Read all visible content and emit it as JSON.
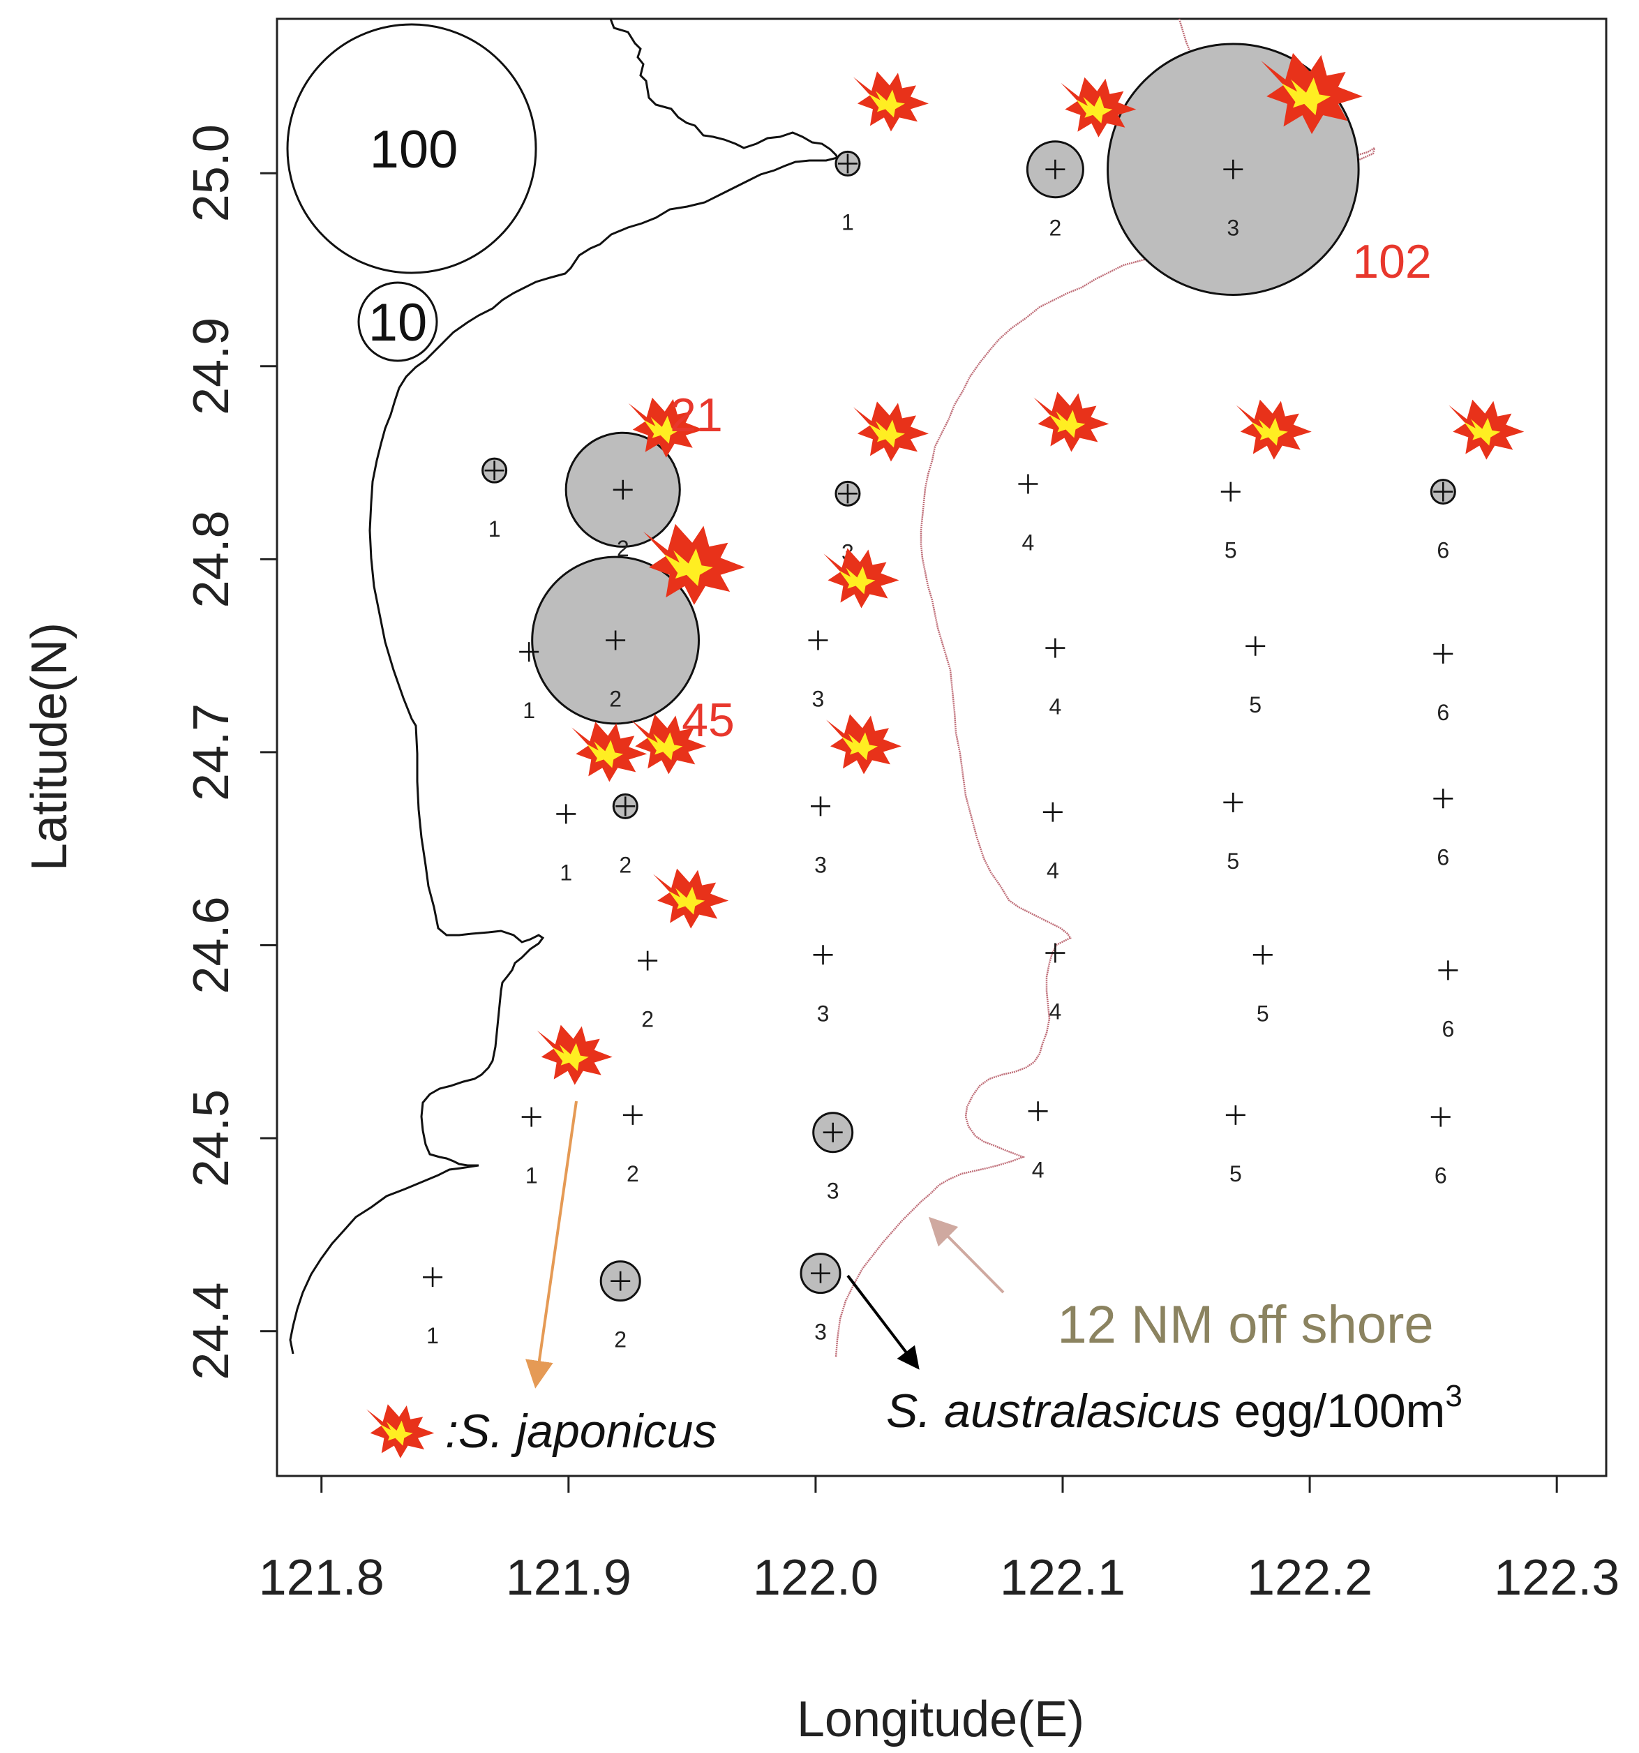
{
  "axes": {
    "xlabel": "Longitude(E)",
    "ylabel": "Latitude(N)",
    "xticks": [
      "121.8",
      "121.9",
      "122.0",
      "122.1",
      "122.2",
      "122.3"
    ],
    "xtick_values": [
      121.8,
      121.9,
      122.0,
      122.1,
      122.2,
      122.3
    ],
    "yticks": [
      "24.4",
      "24.5",
      "24.6",
      "24.7",
      "24.8",
      "24.9",
      "25.0"
    ],
    "ytick_values": [
      24.4,
      24.5,
      24.6,
      24.7,
      24.8,
      24.9,
      25.0
    ],
    "xlim": [
      121.782,
      122.32
    ],
    "ylim": [
      24.325,
      25.08
    ]
  },
  "size_legend": {
    "large_label": "100",
    "small_label": "10"
  },
  "legend": {
    "japonicus_label": ":S. japonicus",
    "australasicus_species": "S. australasicus",
    "australasicus_unit": " egg/100m",
    "australasicus_unit_sup": "3"
  },
  "shore_label": "12 NM off shore",
  "colors": {
    "egg_fill": "#bdbdbd",
    "coastline": "#111111",
    "boundary_12nm": "#c0707a",
    "annotation_red": "#e8372c",
    "fish_red": "#e8321a",
    "fish_yellow": "#ffee22",
    "orange_arrow": "#e59a55",
    "pink_arrow": "#cfa9a0",
    "black_arrow": "#000000"
  },
  "chart_data": {
    "type": "bubble-map",
    "title": "",
    "xlabel": "Longitude(E)",
    "ylabel": "Latitude(N)",
    "stations": [
      {
        "lon": 122.013,
        "lat": 25.005,
        "num": "1",
        "egg": "low"
      },
      {
        "lon": 122.097,
        "lat": 25.002,
        "num": "2",
        "egg": "mid"
      },
      {
        "lon": 122.169,
        "lat": 25.002,
        "num": "3",
        "egg": "102"
      },
      {
        "lon": 121.87,
        "lat": 24.846,
        "num": "1",
        "egg": "low"
      },
      {
        "lon": 121.922,
        "lat": 24.836,
        "num": "2",
        "egg": "21"
      },
      {
        "lon": 122.013,
        "lat": 24.834,
        "num": "3",
        "egg": "low"
      },
      {
        "lon": 122.086,
        "lat": 24.839,
        "num": "4",
        "egg": null
      },
      {
        "lon": 122.168,
        "lat": 24.835,
        "num": "5",
        "egg": null
      },
      {
        "lon": 122.254,
        "lat": 24.835,
        "num": "6",
        "egg": "low"
      },
      {
        "lon": 121.884,
        "lat": 24.752,
        "num": "1",
        "egg": null
      },
      {
        "lon": 121.919,
        "lat": 24.758,
        "num": "2",
        "egg": "45"
      },
      {
        "lon": 122.001,
        "lat": 24.758,
        "num": "3",
        "egg": null
      },
      {
        "lon": 122.097,
        "lat": 24.754,
        "num": "4",
        "egg": null
      },
      {
        "lon": 122.178,
        "lat": 24.755,
        "num": "5",
        "egg": null
      },
      {
        "lon": 122.254,
        "lat": 24.751,
        "num": "6",
        "egg": null
      },
      {
        "lon": 121.899,
        "lat": 24.668,
        "num": "1",
        "egg": null
      },
      {
        "lon": 121.923,
        "lat": 24.672,
        "num": "2",
        "egg": "low"
      },
      {
        "lon": 122.002,
        "lat": 24.672,
        "num": "3",
        "egg": null
      },
      {
        "lon": 122.096,
        "lat": 24.669,
        "num": "4",
        "egg": null
      },
      {
        "lon": 122.169,
        "lat": 24.674,
        "num": "5",
        "egg": null
      },
      {
        "lon": 122.254,
        "lat": 24.676,
        "num": "6",
        "egg": null
      },
      {
        "lon": 121.932,
        "lat": 24.592,
        "num": "2",
        "egg": null
      },
      {
        "lon": 122.003,
        "lat": 24.595,
        "num": "3",
        "egg": null
      },
      {
        "lon": 122.097,
        "lat": 24.596,
        "num": "4",
        "egg": null
      },
      {
        "lon": 122.181,
        "lat": 24.595,
        "num": "5",
        "egg": null
      },
      {
        "lon": 122.256,
        "lat": 24.587,
        "num": "6",
        "egg": null
      },
      {
        "lon": 121.885,
        "lat": 24.511,
        "num": "1",
        "egg": null
      },
      {
        "lon": 121.926,
        "lat": 24.512,
        "num": "2",
        "egg": null
      },
      {
        "lon": 122.007,
        "lat": 24.503,
        "num": "3",
        "egg": "low-mid"
      },
      {
        "lon": 122.09,
        "lat": 24.514,
        "num": "4",
        "egg": null
      },
      {
        "lon": 122.17,
        "lat": 24.512,
        "num": "5",
        "egg": null
      },
      {
        "lon": 122.253,
        "lat": 24.511,
        "num": "6",
        "egg": null
      },
      {
        "lon": 121.845,
        "lat": 24.428,
        "num": "1",
        "egg": null
      },
      {
        "lon": 121.921,
        "lat": 24.426,
        "num": "2",
        "egg": "low-mid"
      },
      {
        "lon": 122.002,
        "lat": 24.43,
        "num": "3",
        "egg": "low-mid"
      }
    ],
    "egg_values_labeled": [
      {
        "station": "2",
        "lat": 24.836,
        "value": "21"
      },
      {
        "station": "2",
        "lat": 24.758,
        "value": "45"
      },
      {
        "station": "3",
        "lat": 25.002,
        "value": "102"
      }
    ],
    "japonicus_presence": [
      {
        "lon": 122.013,
        "lat": 25.005
      },
      {
        "lon": 122.097,
        "lat": 25.002
      },
      {
        "lon": 122.169,
        "lat": 25.002,
        "large": true
      },
      {
        "lon": 121.922,
        "lat": 24.836
      },
      {
        "lon": 122.013,
        "lat": 24.834
      },
      {
        "lon": 122.086,
        "lat": 24.839
      },
      {
        "lon": 122.168,
        "lat": 24.835
      },
      {
        "lon": 122.254,
        "lat": 24.835
      },
      {
        "lon": 121.919,
        "lat": 24.758,
        "large": true
      },
      {
        "lon": 122.001,
        "lat": 24.758
      },
      {
        "lon": 121.899,
        "lat": 24.668
      },
      {
        "lon": 121.923,
        "lat": 24.672
      },
      {
        "lon": 122.002,
        "lat": 24.672
      },
      {
        "lon": 121.932,
        "lat": 24.592
      },
      {
        "lon": 121.885,
        "lat": 24.511
      }
    ],
    "size_legend_values": [
      100,
      10
    ],
    "annotation": "12 NM off shore"
  }
}
